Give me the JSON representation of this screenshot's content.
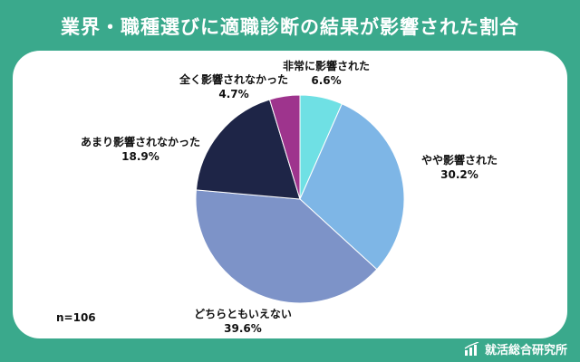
{
  "title": "業界・職種選びに適職診断の結果が影響された割合",
  "sample_size": "n=106",
  "brand": "就活総合研究所",
  "colors": {
    "background": "#3aa98c",
    "card": "#ffffff"
  },
  "chart_data": {
    "type": "pie",
    "slices": [
      {
        "label": "非常に影響された",
        "value": 6.6,
        "value_label": "6.6%",
        "color": "#6fe0e4"
      },
      {
        "label": "やや影響された",
        "value": 30.2,
        "value_label": "30.2%",
        "color": "#7eb6e6"
      },
      {
        "label": "どちらともいえない",
        "value": 39.6,
        "value_label": "39.6%",
        "color": "#7d93c8"
      },
      {
        "label": "あまり影響されなかった",
        "value": 18.9,
        "value_label": "18.9%",
        "color": "#1e2547"
      },
      {
        "label": "全く影響されなかった",
        "value": 4.7,
        "value_label": "4.7%",
        "color": "#9e348d"
      }
    ]
  }
}
